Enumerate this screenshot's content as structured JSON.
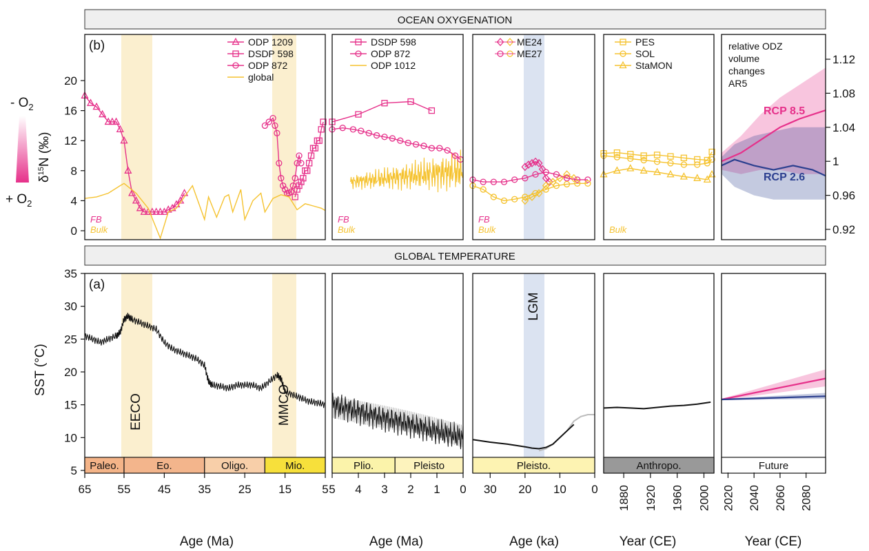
{
  "header_top": "OCEAN OXYGENATION",
  "header_mid": "GLOBAL TEMPERATURE",
  "colors": {
    "pink": "#e6308a",
    "gold": "#f5c22e",
    "navy": "#2b3f8f",
    "band_tan": "#fbefcf",
    "band_blue": "#dbe3f1",
    "grey_epoch": "#999999"
  },
  "chart_data": [
    {
      "id": "oxy-p1",
      "type": "line",
      "panel_label": "(b)",
      "ylabel": "δ15N (‰)",
      "yticks": [
        "0",
        "4",
        "8",
        "12",
        "16",
        "20"
      ],
      "ylim": [
        -1,
        25
      ],
      "xlim": [
        65,
        5
      ],
      "x_scale": "piecewise",
      "band_labels": [],
      "scale_labels": {
        "top": "- O2",
        "bottom": "+ O2"
      },
      "legend": [
        "ODP 1209",
        "DSDP 598",
        "ODP 872",
        "global"
      ],
      "corner_labels": [
        "FB",
        "Bulk"
      ],
      "series": [
        {
          "name": "ODP 1209",
          "marker": "triangle",
          "color": "#e6308a",
          "x": [
            65,
            63.5,
            62,
            60.5,
            59,
            58,
            57,
            56,
            55,
            54,
            53,
            52,
            51,
            50,
            49,
            48,
            47,
            46,
            45,
            44,
            43,
            42,
            41,
            40
          ],
          "y": [
            18,
            17,
            16.5,
            15.5,
            14.5,
            14.5,
            14.5,
            13.5,
            12,
            8,
            5,
            4,
            3,
            2.5,
            2.5,
            2.5,
            2.5,
            2.5,
            2.5,
            2.8,
            3,
            3.5,
            4,
            5
          ]
        },
        {
          "name": "DSDP 598",
          "marker": "square",
          "color": "#e6308a",
          "x": [
            12.5,
            12,
            11.5,
            11,
            10.5,
            10,
            9.5,
            9,
            8.5,
            8,
            7.5,
            7,
            6.5,
            6,
            5.5
          ],
          "y": [
            4.5,
            5.5,
            6,
            6.5,
            7,
            8,
            8,
            9,
            10,
            11,
            11,
            12,
            12,
            13.5,
            14.5
          ]
        },
        {
          "name": "ODP 872",
          "marker": "circle",
          "color": "#e6308a",
          "x": [
            20,
            19,
            18,
            17.5,
            17,
            16.5,
            16,
            15.5,
            15,
            14.5,
            14,
            13.5,
            13,
            12.5,
            12,
            11.5,
            11
          ],
          "y": [
            14,
            14.5,
            15,
            14,
            13,
            9,
            7,
            6,
            5.5,
            5,
            5,
            5.2,
            6,
            7,
            9,
            10,
            9
          ]
        },
        {
          "name": "global",
          "marker": "none",
          "color": "#f5c22e",
          "x": [
            65,
            62,
            59,
            56,
            55,
            52,
            49,
            46,
            44,
            42,
            40,
            38,
            35,
            34,
            32,
            30,
            29,
            28,
            26,
            25,
            23,
            21,
            20,
            18,
            16,
            14,
            12,
            10,
            8,
            6,
            5
          ],
          "y": [
            4.3,
            4.5,
            5,
            6,
            6.3,
            5,
            3,
            -1,
            2.5,
            3,
            4.5,
            6,
            1.5,
            4.5,
            1.8,
            4.5,
            4.8,
            2.5,
            5.5,
            1.5,
            4,
            5,
            2.5,
            4.3,
            4.8,
            4.5,
            2.8,
            3.6,
            3.3,
            3,
            2.7
          ]
        }
      ]
    },
    {
      "id": "oxy-p2",
      "type": "line",
      "xlim": [
        5,
        0
      ],
      "ylim": [
        -1,
        25
      ],
      "legend": [
        "DSDP 598",
        "ODP 872",
        "ODP 1012"
      ],
      "corner_labels": [
        "FB",
        "Bulk"
      ],
      "series": [
        {
          "name": "DSDP 598",
          "marker": "square",
          "color": "#e6308a",
          "x": [
            5,
            4,
            3,
            2,
            1.2
          ],
          "y": [
            14.5,
            15.5,
            17,
            17.2,
            16
          ]
        },
        {
          "name": "ODP 872",
          "marker": "circle",
          "color": "#e6308a",
          "x": [
            5,
            4.6,
            4.2,
            3.9,
            3.6,
            3.3,
            3.0,
            2.7,
            2.4,
            2.1,
            1.8,
            1.5,
            1.2,
            0.9,
            0.6,
            0.3,
            0.1
          ],
          "y": [
            13.5,
            13.7,
            13.5,
            13.3,
            13,
            12.7,
            12.5,
            12.3,
            12,
            11.7,
            11.5,
            11.3,
            11,
            11,
            10.7,
            10,
            9.5
          ]
        },
        {
          "name": "ODP 1012",
          "marker": "none",
          "color": "#f5c22e",
          "x": [
            4.3,
            0
          ],
          "y": [
            6.5,
            8
          ]
        }
      ]
    },
    {
      "id": "oxy-p3",
      "type": "line",
      "xlim": [
        35,
        0
      ],
      "ylim": [
        -1,
        25
      ],
      "legend": [
        "ME24",
        "ME27"
      ],
      "corner_labels": [
        "FB",
        "Bulk"
      ],
      "series": [
        {
          "name": "ME24",
          "marker": "diamond",
          "color": "#e6308a",
          "x": [
            20,
            19,
            18,
            17,
            16,
            15,
            14,
            13
          ],
          "y": [
            8.5,
            8.8,
            9,
            9.2,
            9,
            8.2,
            7,
            6.5
          ]
        },
        {
          "name": "ME24",
          "marker": "diamond",
          "color": "#f5c22e",
          "x": [
            20,
            18,
            16,
            14,
            12,
            10,
            8,
            6
          ],
          "y": [
            4,
            4.5,
            5,
            6,
            6.5,
            7,
            7.5,
            7
          ]
        },
        {
          "name": "ME27",
          "marker": "circle",
          "color": "#e6308a",
          "x": [
            35,
            32,
            29,
            26,
            23,
            20,
            17,
            14,
            11,
            8,
            5,
            2
          ],
          "y": [
            6.8,
            6.5,
            6.5,
            6.5,
            6.8,
            7,
            7.5,
            7.8,
            7.5,
            7,
            6.8,
            6.8
          ]
        },
        {
          "name": "ME27",
          "marker": "circle",
          "color": "#f5c22e",
          "x": [
            35,
            32,
            29,
            26,
            23,
            20,
            17,
            14,
            11,
            8,
            5,
            2
          ],
          "y": [
            6,
            5.5,
            4.5,
            4,
            4.2,
            4.5,
            5,
            5.5,
            6,
            6.2,
            6.3,
            6.3
          ]
        }
      ]
    },
    {
      "id": "oxy-p4",
      "type": "line",
      "xlim": [
        1850,
        2015
      ],
      "ylim": [
        -1,
        25
      ],
      "legend": [
        "PES",
        "SOL",
        "StaMON"
      ],
      "corner_labels": [
        "Bulk"
      ],
      "series": [
        {
          "name": "PES",
          "marker": "square",
          "color": "#f5c22e",
          "x": [
            1850,
            1870,
            1890,
            1910,
            1930,
            1950,
            1970,
            1990,
            2005,
            2012
          ],
          "y": [
            10.3,
            10.4,
            10.2,
            10,
            10.1,
            9.9,
            9.7,
            9.5,
            9.4,
            10.5
          ]
        },
        {
          "name": "SOL",
          "marker": "circle",
          "color": "#f5c22e",
          "x": [
            1850,
            1870,
            1890,
            1910,
            1930,
            1950,
            1970,
            1990,
            2005,
            2012
          ],
          "y": [
            10,
            9.8,
            9.6,
            9.4,
            9.2,
            9,
            8.8,
            8.8,
            9,
            9.5
          ]
        },
        {
          "name": "StaMON",
          "marker": "triangle",
          "color": "#f5c22e",
          "x": [
            1850,
            1870,
            1890,
            1910,
            1930,
            1950,
            1970,
            1990,
            2005,
            2012
          ],
          "y": [
            7.5,
            8,
            8.3,
            8,
            7.8,
            7.5,
            7.2,
            7,
            6.8,
            7.5
          ]
        }
      ]
    },
    {
      "id": "oxy-p5",
      "type": "area",
      "xlim": [
        2015,
        2095
      ],
      "ylim": [
        0.905,
        1.145
      ],
      "yticks": [
        "0.92",
        "0.96",
        "1",
        "1.04",
        "1.08",
        "1.12"
      ],
      "annotation": [
        "relative ODZ",
        "volume",
        "changes",
        "AR5"
      ],
      "series": [
        {
          "name": "RCP 8.5",
          "color": "#e6308a",
          "x": [
            2015,
            2030,
            2045,
            2060,
            2075,
            2095
          ],
          "y": [
            1.0,
            1.01,
            1.025,
            1.04,
            1.05,
            1.06
          ],
          "upper": [
            1.01,
            1.03,
            1.055,
            1.075,
            1.09,
            1.11
          ],
          "lower": [
            0.99,
            0.985,
            0.99,
            0.99,
            0.985,
            0.985
          ]
        },
        {
          "name": "RCP 2.6",
          "color": "#2b3f8f",
          "x": [
            2015,
            2025,
            2040,
            2055,
            2070,
            2085,
            2095
          ],
          "y": [
            0.995,
            1.002,
            0.995,
            0.99,
            0.995,
            0.99,
            0.983
          ],
          "upper": [
            1.005,
            1.02,
            1.03,
            1.035,
            1.04,
            1.04,
            1.04
          ],
          "lower": [
            0.985,
            0.97,
            0.96,
            0.955,
            0.955,
            0.955,
            0.955
          ]
        }
      ]
    },
    {
      "id": "temp-p1",
      "type": "line",
      "panel_label": "(a)",
      "ylabel": "SST (°C)",
      "yticks": [
        "5",
        "10",
        "15",
        "20",
        "25",
        "30",
        "35"
      ],
      "ylim": [
        3.8,
        35
      ],
      "xlim": [
        65,
        5
      ],
      "xticks": [
        "65",
        "55",
        "45",
        "35",
        "25",
        "15",
        "5"
      ],
      "xlabel": "Age (Ma)",
      "band_labels": [
        "EECO",
        "MMCO"
      ],
      "epochs": [
        "Paleo.",
        "Eo.",
        "Oligo.",
        "Mio."
      ],
      "series": [
        {
          "name": "",
          "color": "#111111",
          "x": [
            65,
            63,
            61,
            59,
            57,
            56,
            55,
            54,
            53,
            51,
            49,
            47,
            45,
            43,
            41,
            39,
            37,
            35,
            34,
            33,
            31,
            29,
            27,
            25,
            23,
            21,
            19,
            17,
            16,
            15,
            13,
            11,
            9,
            7,
            5
          ],
          "y": [
            25.5,
            25,
            24.5,
            25,
            25.5,
            26,
            28,
            28.5,
            28,
            27.5,
            27,
            26.5,
            24.5,
            23.5,
            23,
            22.5,
            22,
            21,
            18.5,
            18,
            17.8,
            17.5,
            18,
            18,
            18,
            17.5,
            18.5,
            19.5,
            19,
            17,
            16.5,
            16,
            15.5,
            15.3,
            15
          ]
        }
      ]
    },
    {
      "id": "temp-p2",
      "type": "line",
      "xlim": [
        5,
        0
      ],
      "xticks": [
        "5",
        "4",
        "3",
        "2",
        "1",
        "0"
      ],
      "xlabel": "Age (Ma)",
      "epochs": [
        "Plio.",
        "Pleisto"
      ],
      "series": [
        {
          "name": "",
          "color": "#111111",
          "x": [
            5,
            4.5,
            4,
            3.5,
            3,
            2.5,
            2,
            1.5,
            1,
            0.5,
            0
          ],
          "y": [
            15,
            14.5,
            14.3,
            14,
            13.5,
            13,
            12.5,
            12,
            11.5,
            11,
            10
          ]
        }
      ]
    },
    {
      "id": "temp-p3",
      "type": "line",
      "xlim": [
        35,
        0
      ],
      "xticks": [
        "30",
        "20",
        "10",
        "0"
      ],
      "xlabel": "Age (ka)",
      "band_labels": [
        "LGM"
      ],
      "epochs": [
        "Pleisto."
      ],
      "series": [
        {
          "name": "",
          "color": "#111111",
          "x": [
            35,
            30,
            25,
            20,
            18,
            16,
            14,
            12,
            10,
            8,
            6
          ],
          "y": [
            9.7,
            9.3,
            9,
            8.6,
            8.4,
            8.3,
            8.5,
            9,
            10,
            11,
            12
          ]
        },
        {
          "name": "",
          "color": "#bbbbbb",
          "x": [
            16,
            14,
            12,
            10,
            8,
            6,
            4,
            2,
            0
          ],
          "y": [
            8,
            8.3,
            9,
            10,
            11,
            12.5,
            13.2,
            13.5,
            13.5
          ]
        }
      ]
    },
    {
      "id": "temp-p4",
      "type": "line",
      "xlim": [
        1850,
        2015
      ],
      "xticks": [
        "1880",
        "1920",
        "1960",
        "2000"
      ],
      "xlabel": "Year (CE)",
      "epochs": [
        "Anthropo."
      ],
      "series": [
        {
          "name": "",
          "color": "#111111",
          "x": [
            1850,
            1870,
            1890,
            1910,
            1930,
            1950,
            1970,
            1990,
            2010
          ],
          "y": [
            14.5,
            14.6,
            14.5,
            14.4,
            14.6,
            14.8,
            14.9,
            15.1,
            15.4
          ]
        }
      ]
    },
    {
      "id": "temp-p5",
      "type": "area",
      "xlim": [
        2015,
        2095
      ],
      "xticks": [
        "2020",
        "2040",
        "2060",
        "2080"
      ],
      "xlabel": "Year (CE)",
      "epochs": [
        "Future"
      ],
      "series": [
        {
          "name": "RCP 8.5",
          "color": "#e6308a",
          "x": [
            2015,
            2095
          ],
          "y": [
            15.8,
            19
          ],
          "upper": [
            15.9,
            20.4
          ],
          "lower": [
            15.7,
            17.8
          ]
        },
        {
          "name": "RCP 2.6",
          "color": "#2b3f8f",
          "x": [
            2015,
            2095
          ],
          "y": [
            15.8,
            16.3
          ],
          "upper": [
            15.9,
            16.8
          ],
          "lower": [
            15.7,
            15.9
          ]
        }
      ]
    }
  ]
}
